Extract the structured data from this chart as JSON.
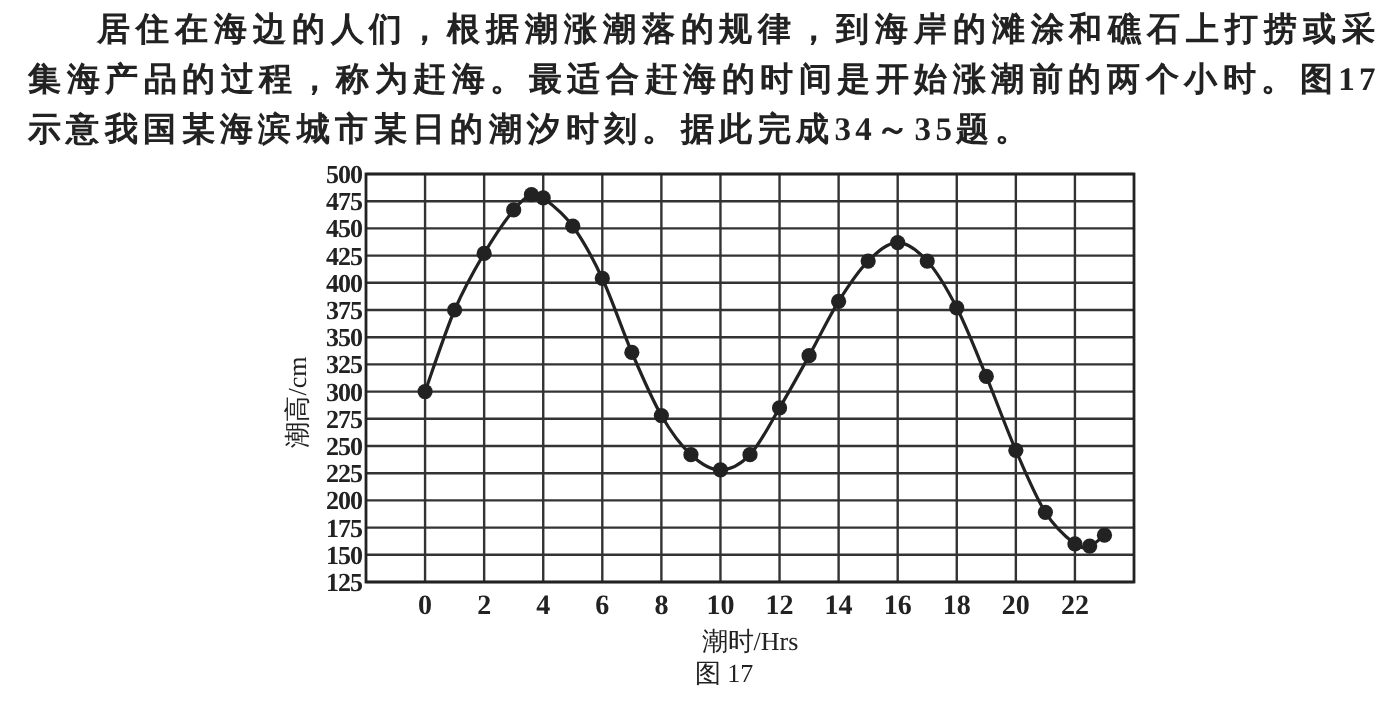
{
  "chart_data": {
    "type": "line",
    "title": "居住在海边的人们，根据潮涨潮落的规律，到海岸的滩涂和礁石上打捞或采集海产品的过程，称为赶海。最适合赶海的时间是开始涨潮前的两个小时。图17示意我国某海滨城市某日的潮汐时刻。据此完成34～35题。",
    "xlabel": "潮时/Hrs",
    "ylabel": "潮高/cm",
    "annotations": [
      "图 17"
    ],
    "series": [
      {
        "color": "#222222",
        "x": [
          0,
          1,
          2,
          3,
          3.6,
          4,
          5,
          6,
          7,
          8,
          9,
          10,
          11,
          12,
          13,
          14,
          15,
          16,
          17,
          18,
          19,
          20,
          21,
          22,
          22.5,
          23
        ],
        "values": [
          300,
          375,
          427,
          467,
          481,
          478,
          452,
          404,
          336,
          278,
          242,
          228,
          242,
          285,
          333,
          383,
          420,
          437,
          420,
          377,
          314,
          246,
          189,
          160,
          158,
          168
        ]
      }
    ],
    "xlim": [
      -2,
      24
    ],
    "xticks": [
      0,
      2,
      4,
      6,
      8,
      10,
      12,
      14,
      16,
      18,
      20,
      22
    ],
    "ylim": [
      125,
      500
    ],
    "yticks": [
      125,
      150,
      175,
      200,
      225,
      250,
      275,
      300,
      325,
      350,
      375,
      400,
      425,
      450,
      475,
      500
    ],
    "grid": true,
    "marker": "circle",
    "line_style": "solid"
  }
}
